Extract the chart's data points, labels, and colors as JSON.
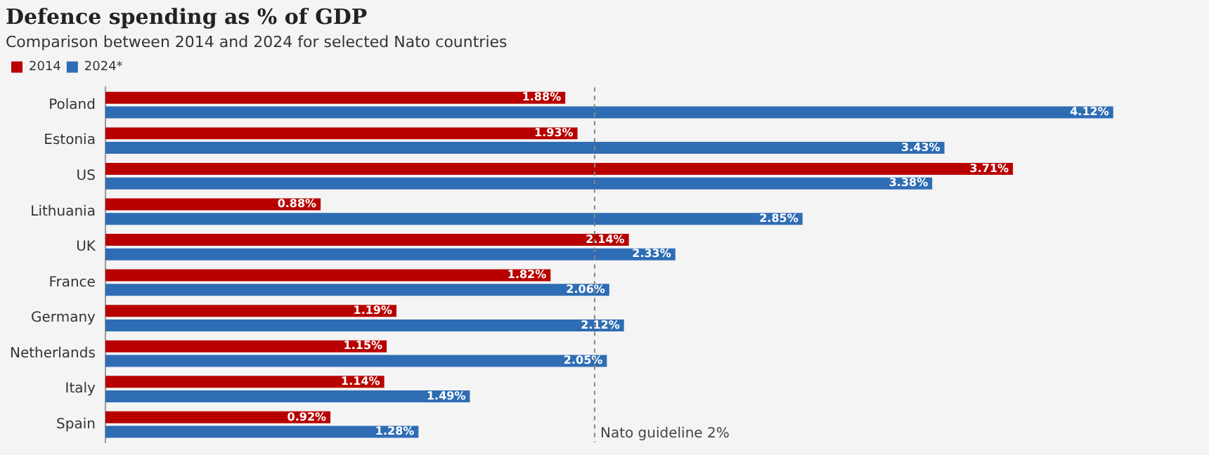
{
  "chart_data": {
    "type": "bar",
    "orientation": "horizontal",
    "title": "Defence spending as % of GDP",
    "subtitle": "Comparison between 2014 and 2024 for selected Nato countries",
    "categories": [
      "Poland",
      "Estonia",
      "US",
      "Lithuania",
      "UK",
      "France",
      "Germany",
      "Netherlands",
      "Italy",
      "Spain"
    ],
    "series": [
      {
        "name": "2014",
        "color": "#b80000",
        "values": [
          1.88,
          1.93,
          3.71,
          0.88,
          2.14,
          1.82,
          1.19,
          1.15,
          1.14,
          0.92
        ],
        "value_labels": [
          "1.88%",
          "1.93%",
          "3.71%",
          "0.88%",
          "2.14%",
          "1.82%",
          "1.19%",
          "1.15%",
          "1.14%",
          "0.92%"
        ]
      },
      {
        "name": "2024*",
        "color": "#2e6db4",
        "values": [
          4.12,
          3.43,
          3.38,
          2.85,
          2.33,
          2.06,
          2.12,
          2.05,
          1.49,
          1.28
        ],
        "value_labels": [
          "4.12%",
          "3.43%",
          "3.38%",
          "2.85%",
          "2.33%",
          "2.06%",
          "2.12%",
          "2.05%",
          "1.49%",
          "1.28%"
        ]
      }
    ],
    "tick_labels": "y",
    "grid": false,
    "legend": "top left",
    "ref_lines": [
      {
        "axis": "x",
        "value": 2,
        "label": "Nato guideline 2%",
        "color": "#888888",
        "line_style": "dashed"
      }
    ]
  }
}
